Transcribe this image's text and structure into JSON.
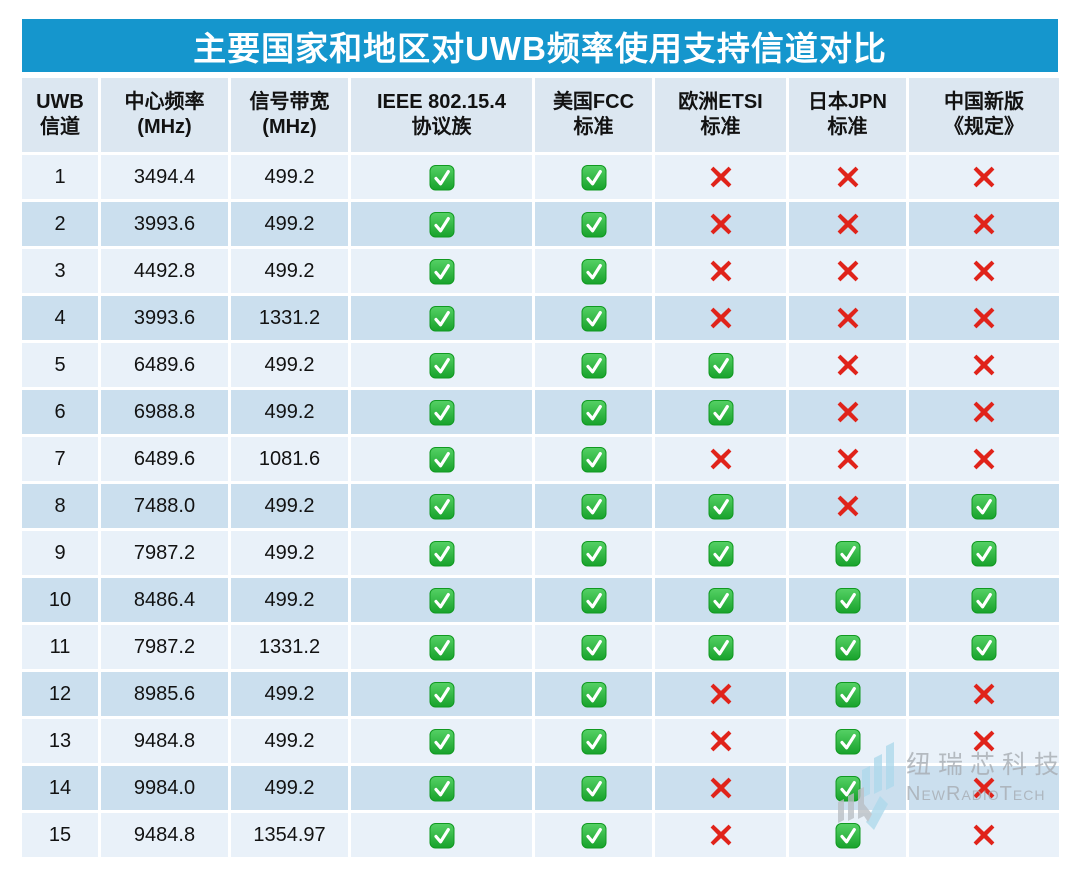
{
  "title": "主要国家和地区对UWB频率使用支持信道对比",
  "colors": {
    "title_bar": "#1596cd",
    "header_bg": "#dce7f1",
    "row_light": "#e9f1f9",
    "row_dark": "#cbdfee",
    "check_green": "#1fa52e",
    "cross_red": "#e0231a"
  },
  "chart_data": {
    "type": "table",
    "title": "主要国家和地区对UWB频率使用支持信道对比",
    "columns": [
      {
        "line1": "UWB",
        "line2": "信道"
      },
      {
        "line1": "中心频率",
        "line2": "(MHz)"
      },
      {
        "line1": "信号带宽",
        "line2": "(MHz)"
      },
      {
        "line1": "IEEE 802.15.4",
        "line2": "协议族"
      },
      {
        "line1": "美国FCC",
        "line2": "标准"
      },
      {
        "line1": "欧洲ETSI",
        "line2": "标准"
      },
      {
        "line1": "日本JPN",
        "line2": "标准"
      },
      {
        "line1": "中国新版",
        "line2": "《规定》"
      }
    ],
    "support_keys": [
      "ieee",
      "fcc",
      "etsi",
      "jpn",
      "china"
    ],
    "rows": [
      {
        "channel": "1",
        "center_freq": "3494.4",
        "bandwidth": "499.2",
        "ieee": true,
        "fcc": true,
        "etsi": false,
        "jpn": false,
        "china": false
      },
      {
        "channel": "2",
        "center_freq": "3993.6",
        "bandwidth": "499.2",
        "ieee": true,
        "fcc": true,
        "etsi": false,
        "jpn": false,
        "china": false
      },
      {
        "channel": "3",
        "center_freq": "4492.8",
        "bandwidth": "499.2",
        "ieee": true,
        "fcc": true,
        "etsi": false,
        "jpn": false,
        "china": false
      },
      {
        "channel": "4",
        "center_freq": "3993.6",
        "bandwidth": "1331.2",
        "ieee": true,
        "fcc": true,
        "etsi": false,
        "jpn": false,
        "china": false
      },
      {
        "channel": "5",
        "center_freq": "6489.6",
        "bandwidth": "499.2",
        "ieee": true,
        "fcc": true,
        "etsi": true,
        "jpn": false,
        "china": false
      },
      {
        "channel": "6",
        "center_freq": "6988.8",
        "bandwidth": "499.2",
        "ieee": true,
        "fcc": true,
        "etsi": true,
        "jpn": false,
        "china": false
      },
      {
        "channel": "7",
        "center_freq": "6489.6",
        "bandwidth": "1081.6",
        "ieee": true,
        "fcc": true,
        "etsi": false,
        "jpn": false,
        "china": false
      },
      {
        "channel": "8",
        "center_freq": "7488.0",
        "bandwidth": "499.2",
        "ieee": true,
        "fcc": true,
        "etsi": true,
        "jpn": false,
        "china": true
      },
      {
        "channel": "9",
        "center_freq": "7987.2",
        "bandwidth": "499.2",
        "ieee": true,
        "fcc": true,
        "etsi": true,
        "jpn": true,
        "china": true
      },
      {
        "channel": "10",
        "center_freq": "8486.4",
        "bandwidth": "499.2",
        "ieee": true,
        "fcc": true,
        "etsi": true,
        "jpn": true,
        "china": true
      },
      {
        "channel": "11",
        "center_freq": "7987.2",
        "bandwidth": "1331.2",
        "ieee": true,
        "fcc": true,
        "etsi": true,
        "jpn": true,
        "china": true
      },
      {
        "channel": "12",
        "center_freq": "8985.6",
        "bandwidth": "499.2",
        "ieee": true,
        "fcc": true,
        "etsi": false,
        "jpn": true,
        "china": false
      },
      {
        "channel": "13",
        "center_freq": "9484.8",
        "bandwidth": "499.2",
        "ieee": true,
        "fcc": true,
        "etsi": false,
        "jpn": true,
        "china": false
      },
      {
        "channel": "14",
        "center_freq": "9984.0",
        "bandwidth": "499.2",
        "ieee": true,
        "fcc": true,
        "etsi": false,
        "jpn": true,
        "china": false
      },
      {
        "channel": "15",
        "center_freq": "9484.8",
        "bandwidth": "1354.97",
        "ieee": true,
        "fcc": true,
        "etsi": false,
        "jpn": true,
        "china": false
      }
    ]
  },
  "watermark": {
    "cn": "纽瑞芯科技",
    "en": "NewRadioTech"
  }
}
